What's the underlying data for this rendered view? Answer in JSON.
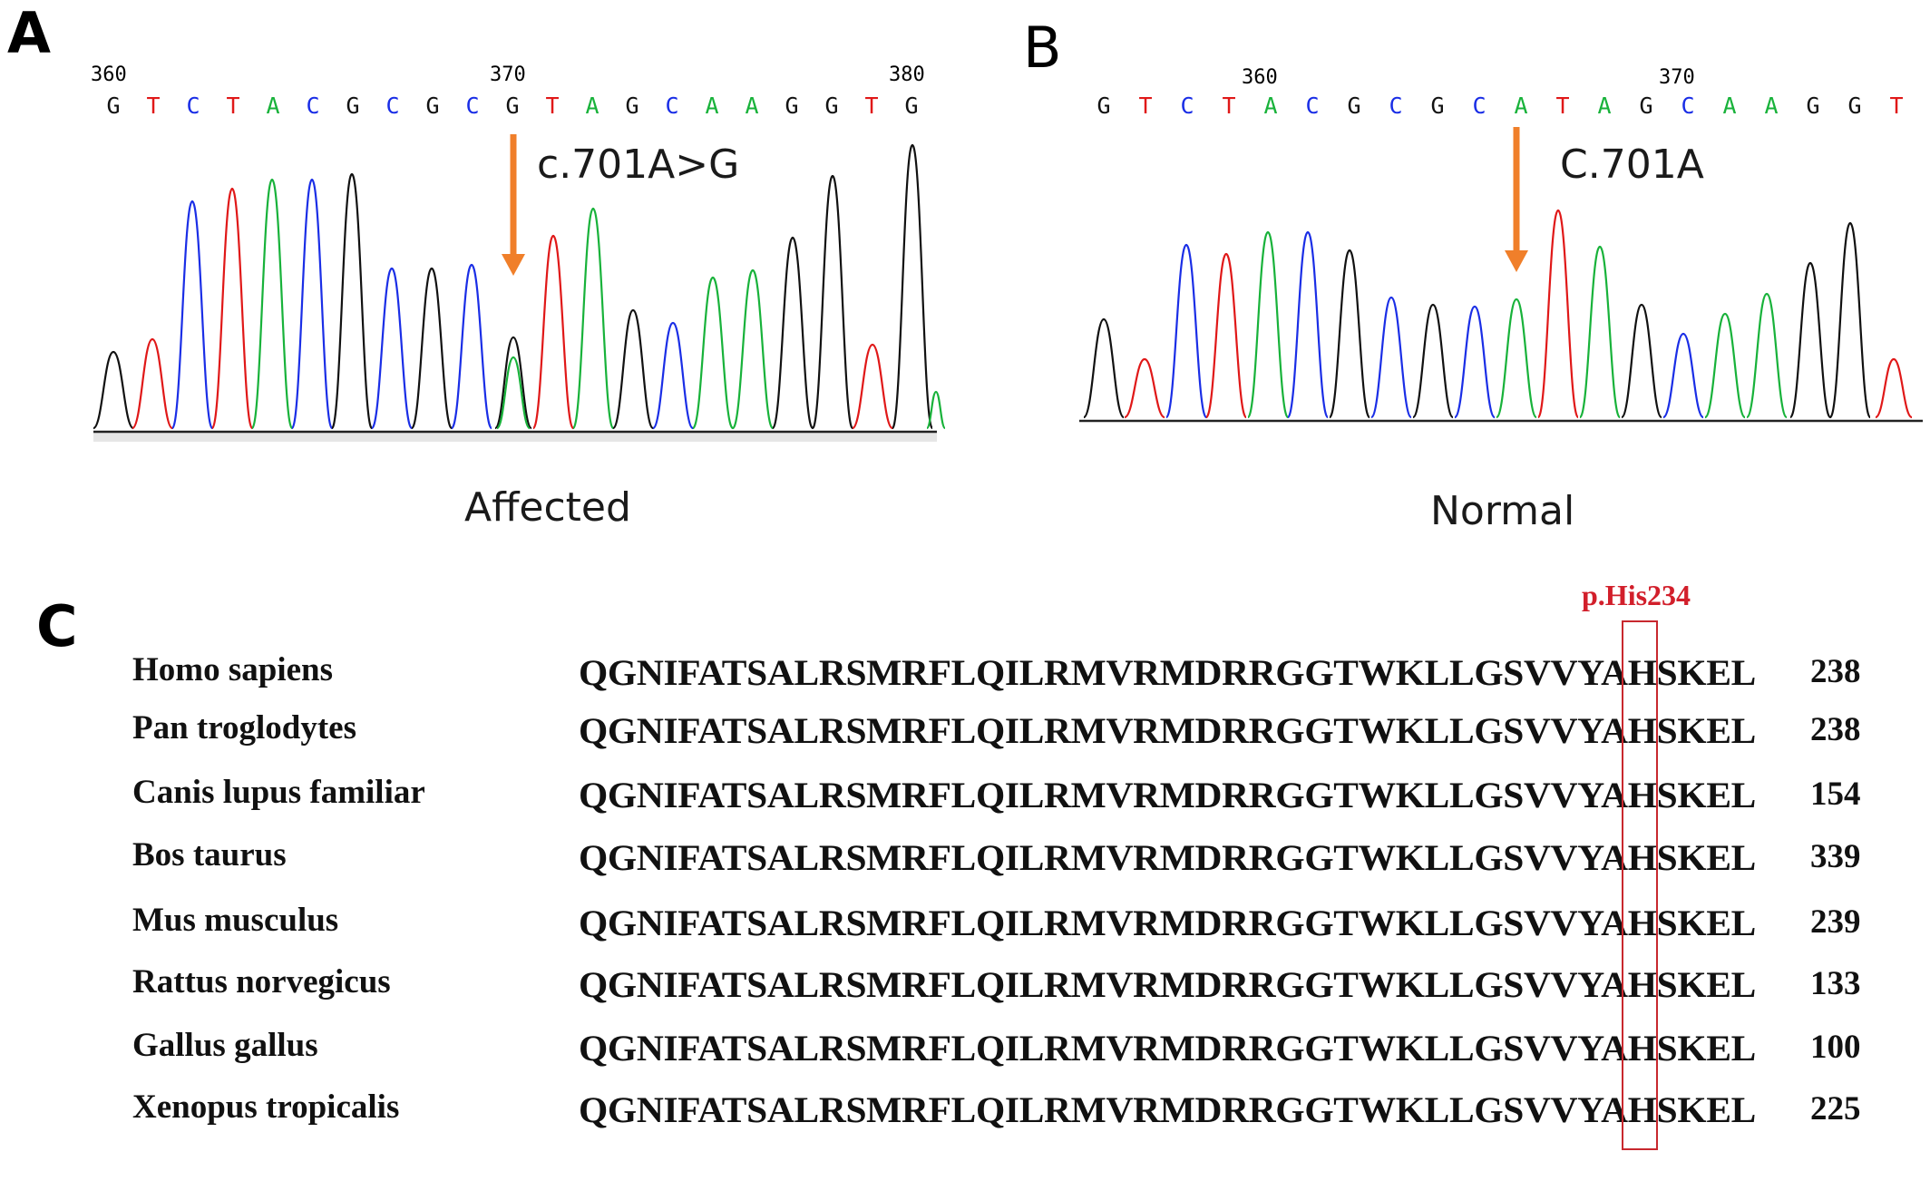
{
  "panel_a": {
    "letter": "A",
    "positions": [
      "360",
      "370",
      "380"
    ],
    "bases": [
      "G",
      "T",
      "C",
      "T",
      "A",
      "C",
      "G",
      "C",
      "G",
      "C",
      "G",
      "T",
      "A",
      "G",
      "C",
      "A",
      "A",
      "G",
      "G",
      "T",
      "G"
    ],
    "mutation_label": "c.701A>G",
    "caption": "Affected"
  },
  "panel_b": {
    "letter": "B",
    "positions": [
      "360",
      "370"
    ],
    "bases": [
      "G",
      "T",
      "C",
      "T",
      "A",
      "C",
      "G",
      "C",
      "G",
      "C",
      "A",
      "T",
      "A",
      "G",
      "C",
      "A",
      "A",
      "G",
      "G",
      "T"
    ],
    "mutation_label": "C.701A",
    "caption": "Normal"
  },
  "panel_c": {
    "letter": "C",
    "highlight_label": "p.His234",
    "rows": [
      {
        "species": "Homo sapiens",
        "sequence": "QGNIFATSALRSMRFLQILRMVRMDRRGGTWKLLGSVVYAHSKEL",
        "number": "238"
      },
      {
        "species": "Pan troglodytes",
        "sequence": "QGNIFATSALRSMRFLQILRMVRMDRRGGTWKLLGSVVYAHSKEL",
        "number": "238"
      },
      {
        "species": "Canis lupus familiar",
        "sequence": "QGNIFATSALRSMRFLQILRMVRMDRRGGTWKLLGSVVYAHSKEL",
        "number": "154"
      },
      {
        "species": "Bos taurus",
        "sequence": "QGNIFATSALRSMRFLQILRMVRMDRRGGTWKLLGSVVYAHSKEL",
        "number": "339"
      },
      {
        "species": "Mus musculus",
        "sequence": "QGNIFATSALRSMRFLQILRMVRMDRRGGTWKLLGSVVYAHSKEL",
        "number": "239"
      },
      {
        "species": "Rattus norvegicus",
        "sequence": "QGNIFATSALRSMRFLQILRMVRMDRRGGTWKLLGSVVYAHSKEL",
        "number": "133"
      },
      {
        "species": "Gallus gallus",
        "sequence": "QGNIFATSALRSMRFLQILRMVRMDRRGGTWKLLGSVVYAHSKEL",
        "number": "100"
      },
      {
        "species": "Xenopus tropicalis",
        "sequence": "QGNIFATSALRSMRFLQILRMVRMDRRGGTWKLLGSVVYAHSKEL",
        "number": "225"
      }
    ]
  },
  "colors": {
    "A": "#18b23a",
    "C": "#1a2ee6",
    "G": "#111111",
    "T": "#e01818",
    "arrow": "#f07f2a",
    "highlight_box": "#c8282e"
  }
}
